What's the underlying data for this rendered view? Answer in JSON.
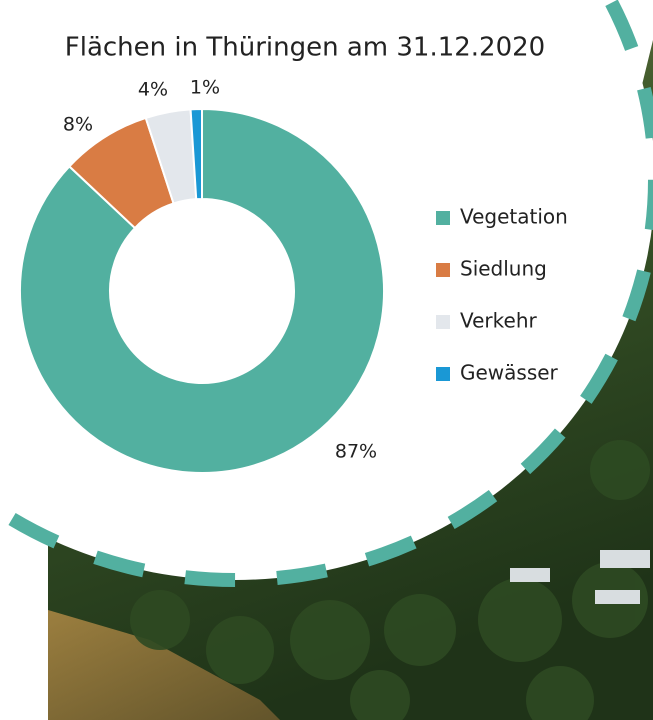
{
  "chart_data": {
    "type": "donut",
    "title": "Flächen in Thüringen am 31.12.2020",
    "categories": [
      "Vegetation",
      "Siedlung",
      "Verkehr",
      "Gewässer"
    ],
    "values": [
      87,
      8,
      4,
      1
    ],
    "value_labels": [
      "87%",
      "8%",
      "4%",
      "1%"
    ],
    "colors": [
      "#52b0a0",
      "#d97c44",
      "#e3e7ec",
      "#1a98d5"
    ],
    "legend": "right"
  }
}
